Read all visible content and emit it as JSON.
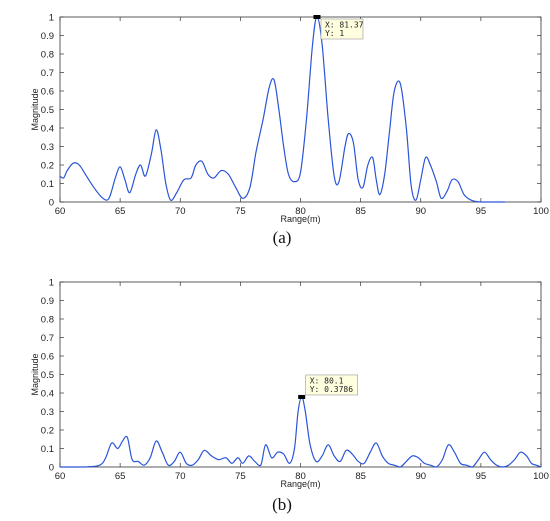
{
  "chart_data": [
    {
      "type": "line",
      "caption": "(a)",
      "xlabel": "Range(m)",
      "ylabel": "Magnitude",
      "xlim": [
        60,
        100
      ],
      "ylim": [
        0,
        1
      ],
      "xticks": [
        60,
        65,
        70,
        75,
        80,
        85,
        90,
        95,
        100
      ],
      "yticks": [
        0,
        0.1,
        0.2,
        0.3,
        0.4,
        0.5,
        0.6,
        0.7,
        0.8,
        0.9,
        1
      ],
      "line_color": "#2b55d9",
      "series": [
        {
          "x": [
            60,
            60.3,
            60.6,
            61.1,
            61.6,
            62.2,
            62.8,
            63.4,
            63.9,
            64.2,
            64.6,
            65.0,
            65.4,
            65.8,
            66.3,
            66.7,
            67.1,
            67.6,
            68.0,
            68.4,
            68.8,
            69.2,
            69.7,
            70.3,
            70.9,
            71.3,
            71.8,
            72.3,
            72.8,
            73.4,
            74.0,
            74.6,
            75.2,
            75.8,
            76.3,
            76.9,
            77.4,
            77.8,
            78.2,
            78.6,
            79.0,
            79.5,
            80.0,
            80.5,
            81.0,
            81.37,
            81.8,
            82.3,
            82.8,
            83.2,
            83.7,
            84.0,
            84.4,
            84.8,
            85.2,
            85.6,
            86.0,
            86.3,
            86.6,
            87.0,
            87.4,
            87.8,
            88.3,
            88.8,
            89.2,
            89.6,
            90.0,
            90.4,
            90.8,
            91.3,
            91.7,
            92.2,
            92.6,
            93.1,
            93.6,
            94.2,
            95.0,
            96.0,
            97.0
          ],
          "y": [
            0.14,
            0.13,
            0.17,
            0.21,
            0.2,
            0.14,
            0.08,
            0.03,
            0.01,
            0.04,
            0.13,
            0.19,
            0.12,
            0.05,
            0.15,
            0.2,
            0.14,
            0.26,
            0.39,
            0.28,
            0.1,
            0.01,
            0.05,
            0.12,
            0.13,
            0.2,
            0.22,
            0.15,
            0.13,
            0.17,
            0.15,
            0.08,
            0.02,
            0.08,
            0.27,
            0.45,
            0.62,
            0.66,
            0.5,
            0.3,
            0.15,
            0.11,
            0.16,
            0.45,
            0.85,
            1.0,
            0.85,
            0.45,
            0.14,
            0.11,
            0.3,
            0.37,
            0.32,
            0.12,
            0.08,
            0.2,
            0.24,
            0.12,
            0.04,
            0.15,
            0.38,
            0.6,
            0.64,
            0.4,
            0.09,
            0.01,
            0.12,
            0.24,
            0.2,
            0.11,
            0.02,
            0.06,
            0.12,
            0.11,
            0.04,
            0.01,
            0.0,
            0.0,
            0.0
          ]
        }
      ],
      "datatip": {
        "x": 81.37,
        "y": 1,
        "line1": "X: 81.37",
        "line2": "Y: 1"
      }
    },
    {
      "type": "line",
      "caption": "(b)",
      "xlabel": "Range(m)",
      "ylabel": "Magnitude",
      "xlim": [
        60,
        100
      ],
      "ylim": [
        0,
        1
      ],
      "xticks": [
        60,
        65,
        70,
        75,
        80,
        85,
        90,
        95,
        100
      ],
      "yticks": [
        0,
        0.1,
        0.2,
        0.3,
        0.4,
        0.5,
        0.6,
        0.7,
        0.8,
        0.9,
        1
      ],
      "line_color": "#2b55d9",
      "series": [
        {
          "x": [
            60,
            62.0,
            63.3,
            63.8,
            64.3,
            64.8,
            65.2,
            65.6,
            66.0,
            66.5,
            67.0,
            67.5,
            68.0,
            68.5,
            69.0,
            69.5,
            70.0,
            70.5,
            71.0,
            71.5,
            72.0,
            72.6,
            73.2,
            73.8,
            74.3,
            74.8,
            75.2,
            75.7,
            76.2,
            76.7,
            77.1,
            77.6,
            78.1,
            78.6,
            79.1,
            79.5,
            79.8,
            80.1,
            80.4,
            80.8,
            81.3,
            81.8,
            82.3,
            82.8,
            83.3,
            83.8,
            84.3,
            84.8,
            85.3,
            85.8,
            86.3,
            86.8,
            87.3,
            87.8,
            88.3,
            88.8,
            89.3,
            89.8,
            90.3,
            90.8,
            91.3,
            91.8,
            92.3,
            92.8,
            93.3,
            93.8,
            94.3,
            94.8,
            95.3,
            95.8,
            96.3,
            96.8,
            97.3,
            97.8,
            98.3,
            98.8,
            99.2,
            99.6,
            100
          ],
          "y": [
            0.0,
            0.0,
            0.01,
            0.05,
            0.13,
            0.1,
            0.14,
            0.16,
            0.04,
            0.03,
            0.01,
            0.05,
            0.14,
            0.08,
            0.01,
            0.03,
            0.08,
            0.02,
            0.01,
            0.04,
            0.09,
            0.06,
            0.04,
            0.05,
            0.02,
            0.05,
            0.02,
            0.06,
            0.03,
            0.01,
            0.12,
            0.05,
            0.08,
            0.07,
            0.02,
            0.1,
            0.3,
            0.3786,
            0.3,
            0.12,
            0.03,
            0.06,
            0.12,
            0.06,
            0.03,
            0.09,
            0.07,
            0.03,
            0.02,
            0.08,
            0.13,
            0.06,
            0.02,
            0.01,
            0.0,
            0.03,
            0.06,
            0.05,
            0.02,
            0.01,
            0.0,
            0.04,
            0.12,
            0.08,
            0.02,
            0.01,
            0.0,
            0.04,
            0.08,
            0.04,
            0.01,
            0.0,
            0.01,
            0.04,
            0.08,
            0.06,
            0.02,
            0.01,
            0.0
          ]
        }
      ],
      "datatip": {
        "x": 80.1,
        "y": 0.3786,
        "line1": "X: 80.1",
        "line2": "Y: 0.3786"
      }
    }
  ]
}
